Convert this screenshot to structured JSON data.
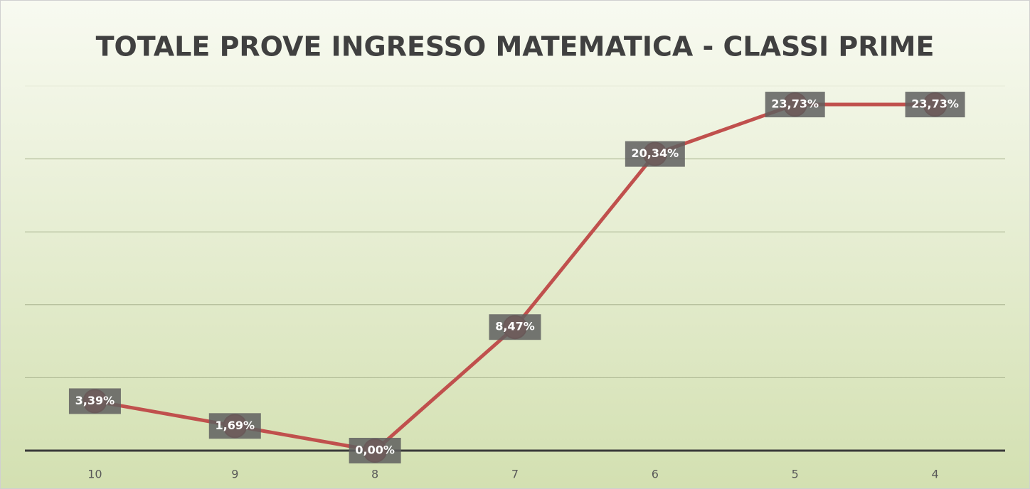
{
  "chart_data": {
    "type": "line",
    "title": "TOTALE PROVE INGRESSO MATEMATICA - CLASSI PRIME",
    "categories": [
      "10",
      "9",
      "8",
      "7",
      "6",
      "5",
      "4"
    ],
    "series": [
      {
        "color": "#c0504d",
        "values": [
          3.39,
          1.69,
          0,
          8.47,
          20.34,
          23.73,
          23.73
        ],
        "value_labels": [
          "3,39%",
          "1,69%",
          "0,00%",
          "8,47%",
          "20,34%",
          "23,73%",
          "23,73%"
        ]
      }
    ],
    "ylim": [
      0,
      25
    ],
    "yticks": [
      0,
      5,
      10,
      15,
      20,
      25
    ],
    "grid": true
  }
}
